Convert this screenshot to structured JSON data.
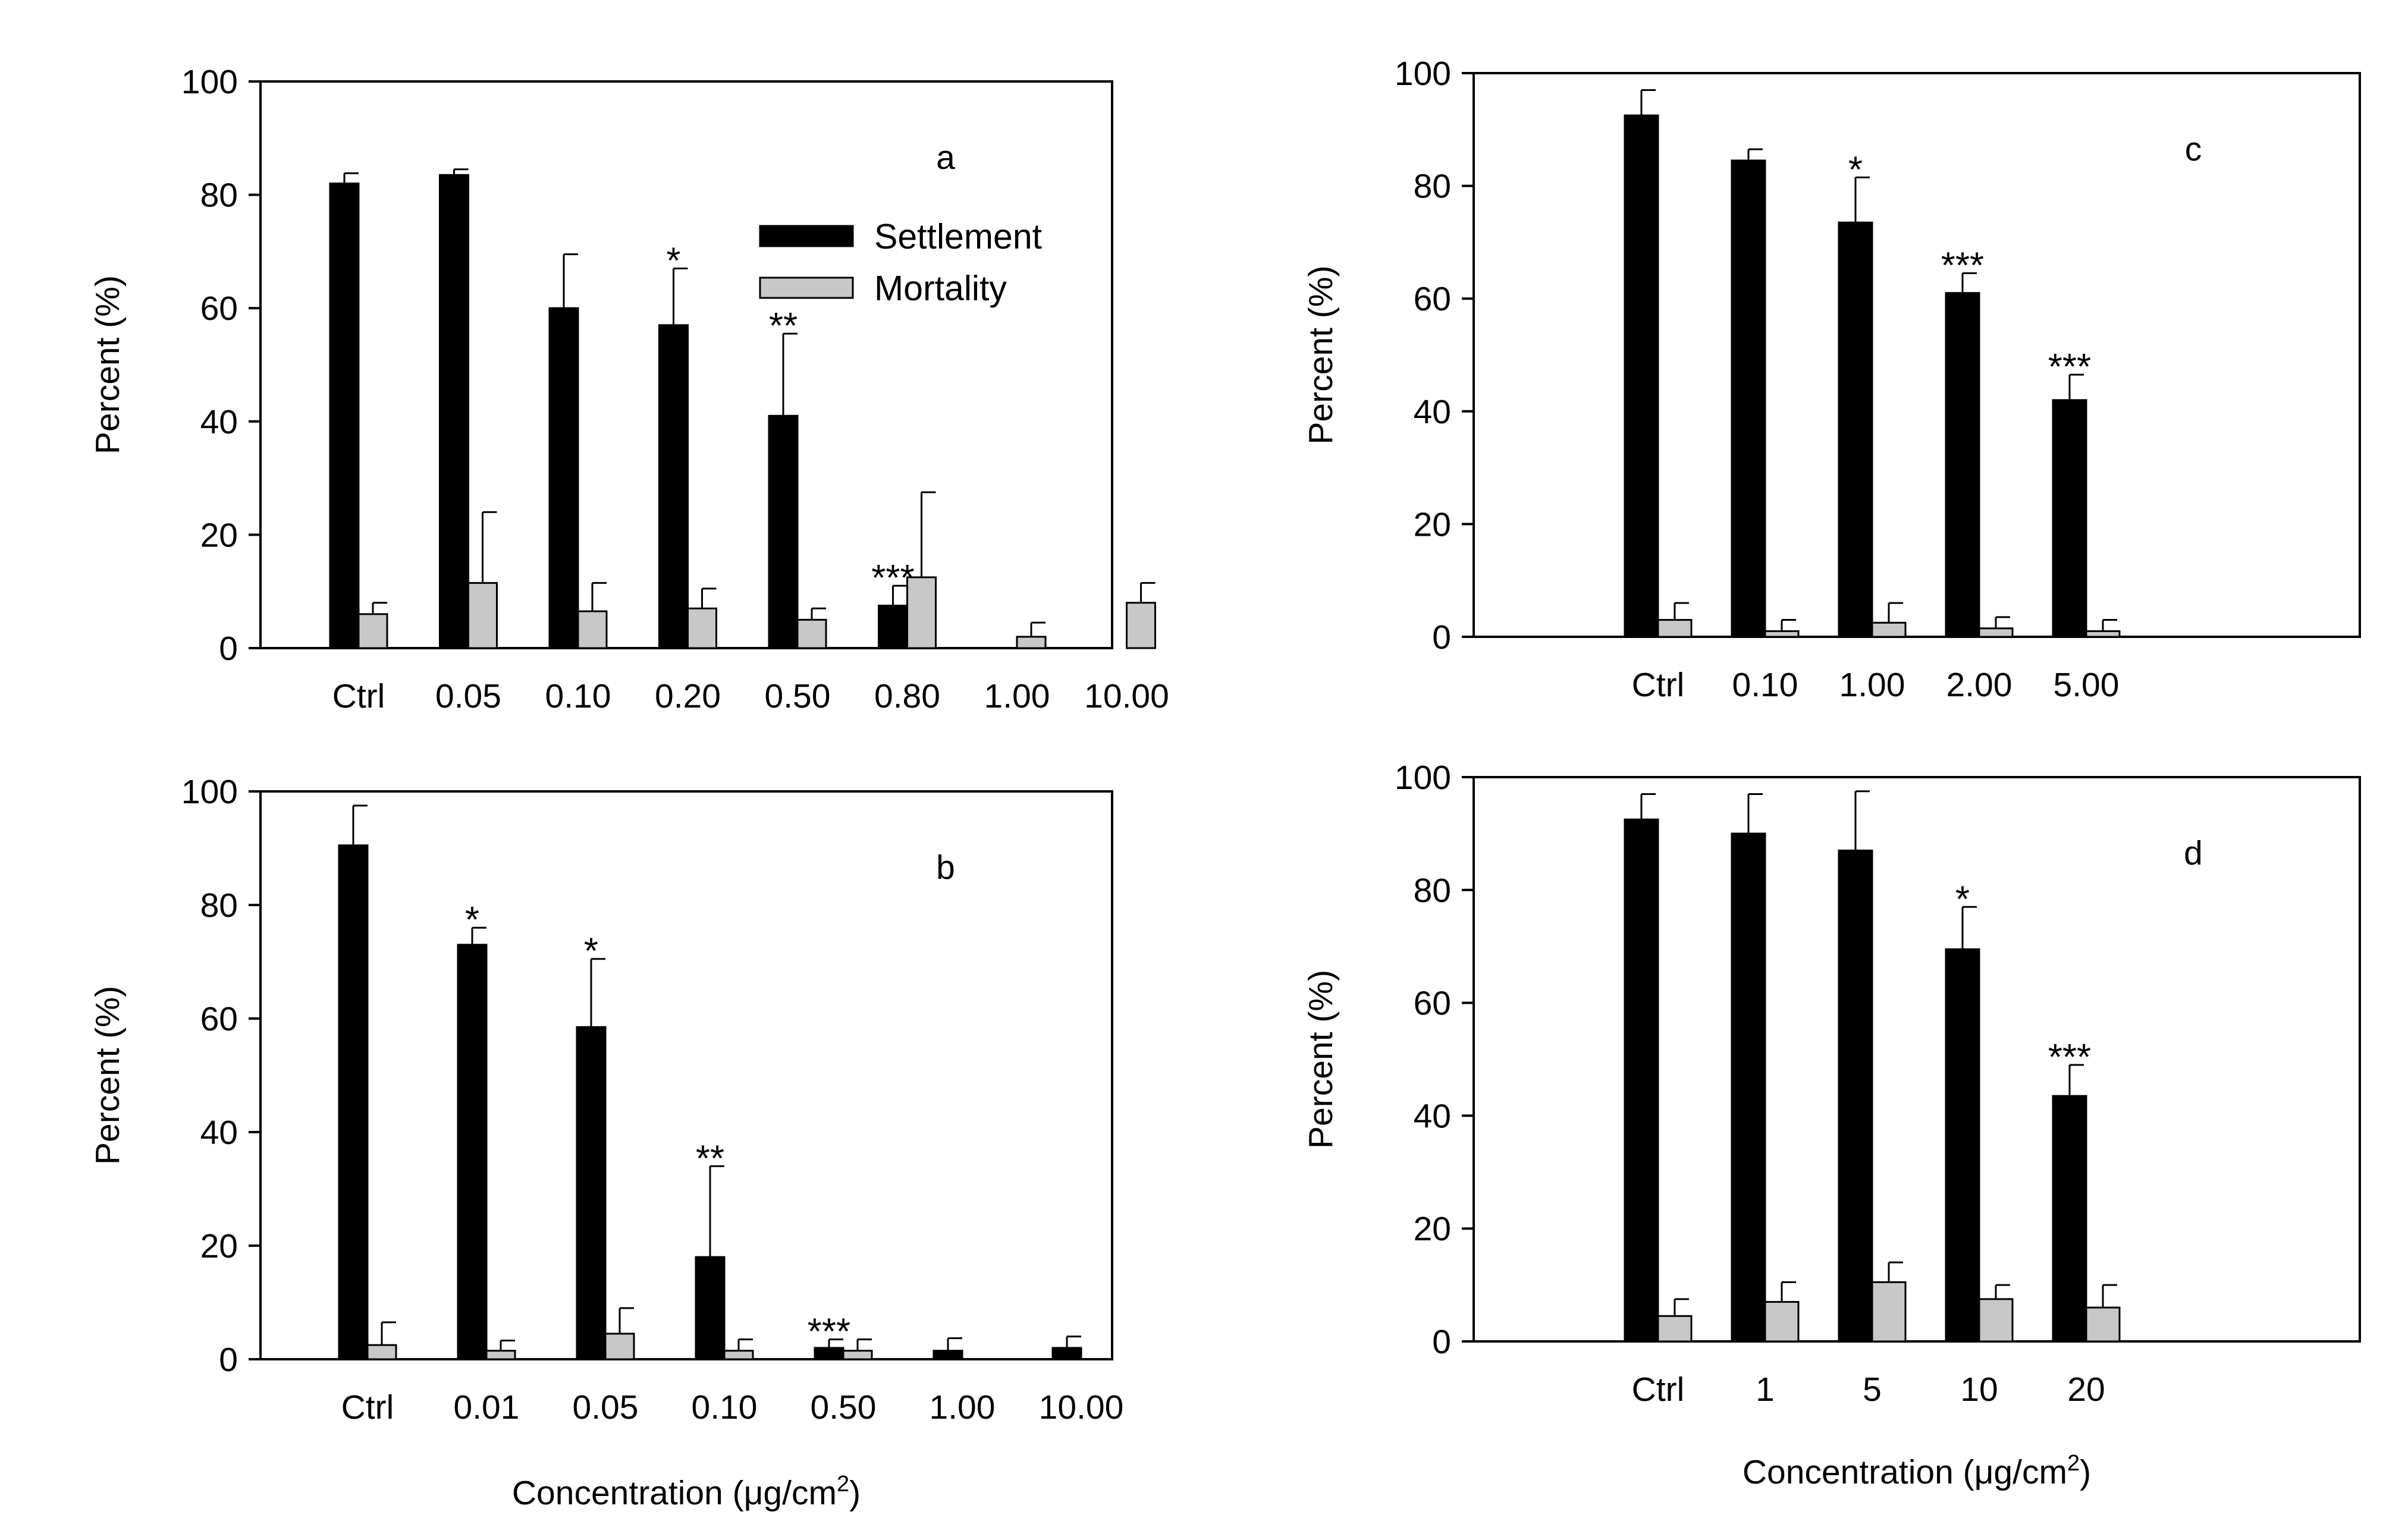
{
  "colors": {
    "settlement": "#000000",
    "mortality": "#c8c8c8",
    "axis": "#000000"
  },
  "shared": {
    "y_label": "Percent (%)",
    "x_label_prefix": "Concentration (",
    "x_label_mu": "μ",
    "x_label_unit": "g/cm",
    "x_label_sup": "2",
    "x_label_suffix": ")"
  },
  "legend": {
    "settlement": "Settlement",
    "mortality": "Mortality"
  },
  "chart_data": [
    {
      "id": "a",
      "type": "bar",
      "panel_label": "a",
      "ylim": [
        0,
        100
      ],
      "yticks": [
        0,
        20,
        40,
        60,
        80,
        100
      ],
      "categories": [
        "Ctrl",
        "0.05",
        "0.10",
        "0.20",
        "0.50",
        "0.80",
        "1.00",
        "10.00"
      ],
      "series": [
        {
          "name": "Settlement",
          "values": [
            82,
            83.5,
            60,
            57,
            41,
            7.5,
            0,
            0
          ],
          "errors": [
            1.8,
            1,
            9.5,
            10,
            14.5,
            3.5,
            0,
            0
          ]
        },
        {
          "name": "Mortality",
          "values": [
            6,
            11.5,
            6.5,
            7,
            5,
            12.5,
            2,
            8
          ],
          "errors": [
            2,
            12.5,
            5,
            3.5,
            2,
            15,
            2.5,
            3.5
          ]
        }
      ],
      "significance": [
        "",
        "",
        "",
        "*",
        "**",
        "***",
        "",
        ""
      ],
      "show_legend": true,
      "show_xlabel": false
    },
    {
      "id": "b",
      "type": "bar",
      "panel_label": "b",
      "ylim": [
        0,
        100
      ],
      "yticks": [
        0,
        20,
        40,
        60,
        80,
        100
      ],
      "categories": [
        "Ctrl",
        "0.01",
        "0.05",
        "0.10",
        "0.50",
        "1.00",
        "10.00"
      ],
      "series": [
        {
          "name": "Settlement",
          "values": [
            90.5,
            73,
            58.5,
            18,
            2,
            1.5,
            2
          ],
          "errors": [
            7,
            3,
            12,
            16,
            1.5,
            2.2,
            2
          ]
        },
        {
          "name": "Mortality",
          "values": [
            2.5,
            1.5,
            4.5,
            1.5,
            1.5,
            0,
            0
          ],
          "errors": [
            4,
            1.8,
            4.5,
            2,
            2,
            0,
            0
          ]
        }
      ],
      "significance": [
        "",
        "*",
        "*",
        "**",
        "***",
        "",
        ""
      ],
      "show_legend": false,
      "show_xlabel": true
    },
    {
      "id": "c",
      "type": "bar",
      "panel_label": "c",
      "ylim": [
        0,
        100
      ],
      "yticks": [
        0,
        20,
        40,
        60,
        80,
        100
      ],
      "categories": [
        "Ctrl",
        "0.10",
        "1.00",
        "2.00",
        "5.00"
      ],
      "series": [
        {
          "name": "Settlement",
          "values": [
            92.5,
            84.5,
            73.5,
            61,
            42
          ],
          "errors": [
            4.5,
            2,
            8,
            3.5,
            4.5
          ]
        },
        {
          "name": "Mortality",
          "values": [
            3,
            1,
            2.5,
            1.5,
            1
          ],
          "errors": [
            3,
            2,
            3.5,
            2,
            2
          ]
        }
      ],
      "significance": [
        "",
        "",
        "*",
        "***",
        "***"
      ],
      "show_legend": false,
      "show_xlabel": false
    },
    {
      "id": "d",
      "type": "bar",
      "panel_label": "d",
      "ylim": [
        0,
        100
      ],
      "yticks": [
        0,
        20,
        40,
        60,
        80,
        100
      ],
      "categories": [
        "Ctrl",
        "1",
        "5",
        "10",
        "20"
      ],
      "series": [
        {
          "name": "Settlement",
          "values": [
            92.5,
            90,
            87,
            69.5,
            43.5
          ],
          "errors": [
            4.5,
            7,
            10.5,
            7.5,
            5.5
          ]
        },
        {
          "name": "Mortality",
          "values": [
            4.5,
            7,
            10.5,
            7.5,
            6
          ],
          "errors": [
            3,
            3.5,
            3.5,
            2.5,
            4
          ]
        }
      ],
      "significance": [
        "",
        "",
        "",
        "*",
        "***"
      ],
      "show_legend": false,
      "show_xlabel": true
    }
  ]
}
